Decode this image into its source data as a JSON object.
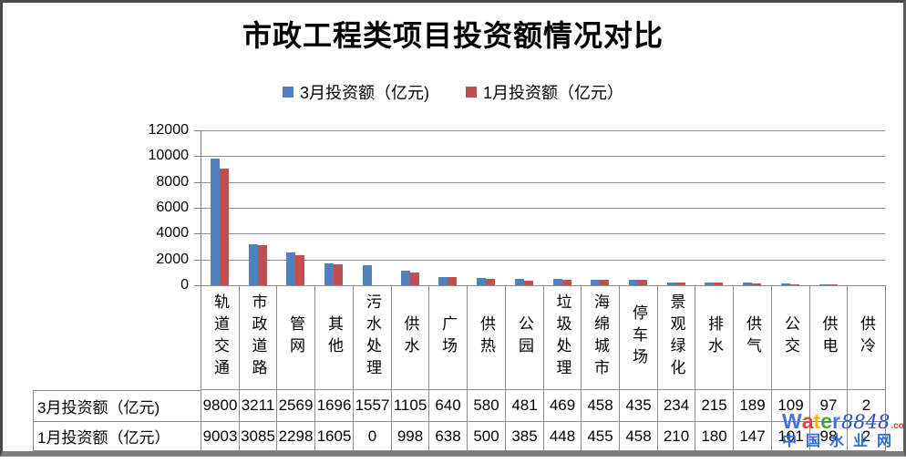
{
  "chart_data": {
    "type": "bar",
    "title": "市政工程类项目投资额情况对比",
    "categories": [
      "轨道交通",
      "市政道路",
      "管网",
      "其他",
      "污水处理",
      "供水",
      "广场",
      "供热",
      "公园",
      "垃圾处理",
      "海绵城市",
      "停车场",
      "景观绿化",
      "排水",
      "供气",
      "公交",
      "供电",
      "供冷"
    ],
    "series": [
      {
        "name": "3月投资额（亿元)",
        "color": "#4F81BD",
        "values": [
          9800,
          3211,
          2569,
          1696,
          1557,
          1105,
          640,
          580,
          481,
          469,
          458,
          435,
          234,
          215,
          189,
          109,
          97,
          2
        ]
      },
      {
        "name": "1月投资额（亿元）",
        "color": "#C0504D",
        "values": [
          9003,
          3085,
          2298,
          1605,
          0,
          998,
          638,
          500,
          385,
          448,
          455,
          458,
          210,
          180,
          147,
          101,
          98,
          2
        ]
      }
    ],
    "ylim": [
      0,
      12000
    ],
    "yticks": [
      0,
      2000,
      4000,
      6000,
      8000,
      10000,
      12000
    ],
    "grid": true,
    "legend_position": "top-center",
    "show_data_table": true
  },
  "watermark": {
    "letters": [
      {
        "ch": "W",
        "color": "#4274DB"
      },
      {
        "ch": "a",
        "color": "#E0432F"
      },
      {
        "ch": "t",
        "color": "#F5B800"
      },
      {
        "ch": "e",
        "color": "#3FA33C"
      },
      {
        "ch": "r",
        "color": "#4274DB"
      }
    ],
    "number": "8848",
    "number_color": "#2B50C8",
    "domain": ".com",
    "domain_color": "#E8372C",
    "site_name": "中国水业网",
    "site_color": "#2F6BD9"
  }
}
